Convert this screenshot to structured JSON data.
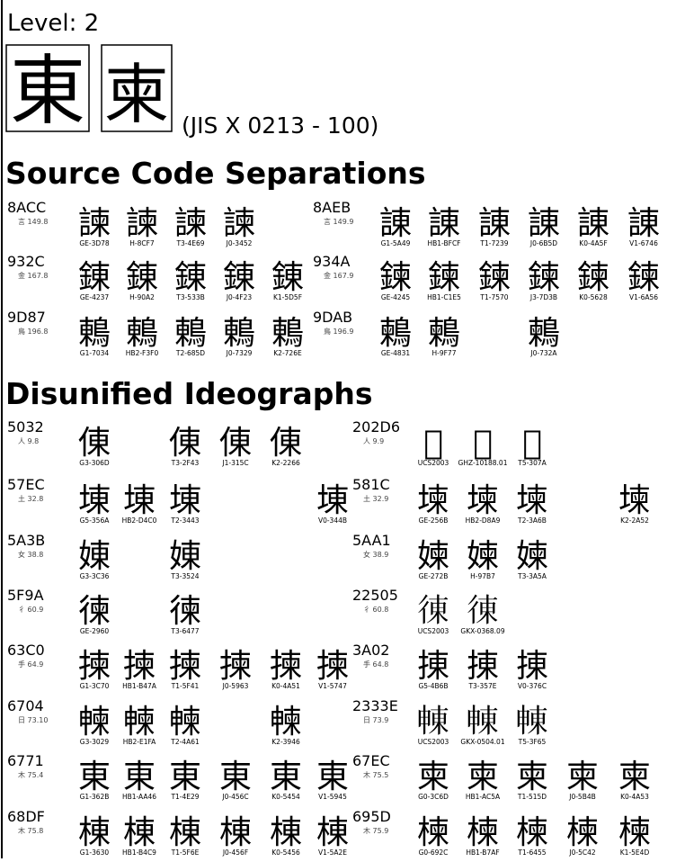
{
  "header": {
    "level": "Level: 2",
    "glyphs": [
      "東",
      "柬"
    ],
    "source": "(JIS X 0213 - 100)"
  },
  "sections": [
    {
      "title": "Source Code Separations",
      "rows": [
        {
          "left": {
            "code": "8ACC",
            "radical": "言 149.8",
            "char": "諫",
            "sources": [
              "GE-3D78",
              "H-8CF7",
              "T3-4E69",
              "J0-3452"
            ]
          },
          "right": {
            "code": "8AEB",
            "radical": "言 149.9",
            "char": "諌",
            "sources": [
              "G1-5A49",
              "HB1-BFCF",
              "T1-7239",
              "J0-6B5D",
              "K0-4A5F",
              "V1-6746"
            ]
          }
        },
        {
          "left": {
            "code": "932C",
            "radical": "金 167.8",
            "char": "錬",
            "sources": [
              "GE-4237",
              "H-90A2",
              "T3-533B",
              "J0-4F23",
              "K1-5D5F"
            ]
          },
          "right": {
            "code": "934A",
            "radical": "金 167.9",
            "char": "鍊",
            "sources": [
              "GE-4245",
              "HB1-C1E5",
              "T1-7570",
              "J3-7D3B",
              "K0-5628",
              "V1-6A56"
            ]
          }
        },
        {
          "left": {
            "code": "9D87",
            "radical": "鳥 196.8",
            "char": "鶇",
            "sources": [
              "G1-7034",
              "HB2-F3F0",
              "T2-685D",
              "J0-7329",
              "K2-726E"
            ]
          },
          "right": {
            "code": "9DAB",
            "radical": "鳥 196.9",
            "char": "鶫",
            "sources": [
              "GE-4831",
              "H-9F77",
              null,
              "J0-732A"
            ]
          }
        }
      ]
    },
    {
      "title": "Disunified Ideographs",
      "rows": [
        {
          "left": {
            "code": "5032",
            "radical": "人 9.8",
            "char": "倲",
            "sources": [
              "G3-306D",
              null,
              "T3-2F43",
              "J1-315C",
              "K2-2266"
            ]
          },
          "right": {
            "code": "202D6",
            "radical": "人 9.9",
            "char": "𠋖",
            "sources": [
              "UCS2003",
              "GHZ-10188.01",
              "T5-307A"
            ]
          }
        },
        {
          "left": {
            "code": "57EC",
            "radical": "土 32.8",
            "char": "埬",
            "sources": [
              "G5-356A",
              "HB2-D4C0",
              "T2-3443",
              null,
              null,
              "V0-344B"
            ]
          },
          "right": {
            "code": "581C",
            "radical": "土 32.9",
            "char": "堜",
            "sources": [
              "GE-256B",
              "HB2-D8A9",
              "T2-3A6B",
              null,
              "K2-2A52"
            ]
          }
        },
        {
          "left": {
            "code": "5A3B",
            "radical": "女 38.8",
            "char": "娻",
            "sources": [
              "G3-3C36",
              null,
              "T3-3524"
            ]
          },
          "right": {
            "code": "5AA1",
            "radical": "女 38.9",
            "char": "媡",
            "sources": [
              "GE-272B",
              "H-97B7",
              "T3-3A5A"
            ]
          }
        },
        {
          "left": {
            "code": "5F9A",
            "radical": "彳 60.9",
            "char": "徚",
            "sources": [
              "GE-2960",
              null,
              "T3-6477"
            ]
          },
          "right": {
            "code": "22505",
            "radical": "彳 60.8",
            "char": "𢔅",
            "sources": [
              "UCS2003",
              "GKX-0368.09"
            ]
          }
        },
        {
          "left": {
            "code": "63C0",
            "radical": "手 64.9",
            "char": "揀",
            "sources": [
              "G1-3C70",
              "HB1-B47A",
              "T1-5F41",
              "J0-5963",
              "K0-4A51",
              "V1-5747"
            ]
          },
          "right": {
            "code": "3A02",
            "radical": "手 64.8",
            "char": "㨂",
            "sources": [
              "G5-4B6B",
              "T3-357E",
              "V0-376C"
            ]
          }
        },
        {
          "left": {
            "code": "6704",
            "radical": "日 73.10",
            "char": "朄",
            "sources": [
              "G3-3029",
              "HB2-E1FA",
              "T2-4A61",
              null,
              "K2-3946"
            ]
          },
          "right": {
            "code": "2333E",
            "radical": "日 73.9",
            "char": "𣌾",
            "sources": [
              "UCS2003",
              "GKX-0504.01",
              "T5-3F65"
            ]
          }
        },
        {
          "left": {
            "code": "6771",
            "radical": "木 75.4",
            "char": "東",
            "sources": [
              "G1-362B",
              "HB1-AA46",
              "T1-4E29",
              "J0-456C",
              "K0-5454",
              "V1-5945"
            ]
          },
          "right": {
            "code": "67EC",
            "radical": "木 75.5",
            "char": "柬",
            "sources": [
              "G0-3C6D",
              "HB1-AC5A",
              "T1-515D",
              "J0-5B4B",
              "K0-4A53"
            ]
          }
        },
        {
          "left": {
            "code": "68DF",
            "radical": "木 75.8",
            "char": "棟",
            "sources": [
              "G1-3630",
              "HB1-B4C9",
              "T1-5F6E",
              "J0-456F",
              "K0-5456",
              "V1-5A2E"
            ]
          },
          "right": {
            "code": "695D",
            "radical": "木 75.9",
            "char": "楝",
            "sources": [
              "G0-692C",
              "HB1-B7AF",
              "T1-6455",
              "J0-5C42",
              "K1-5E4D"
            ]
          }
        }
      ]
    }
  ]
}
